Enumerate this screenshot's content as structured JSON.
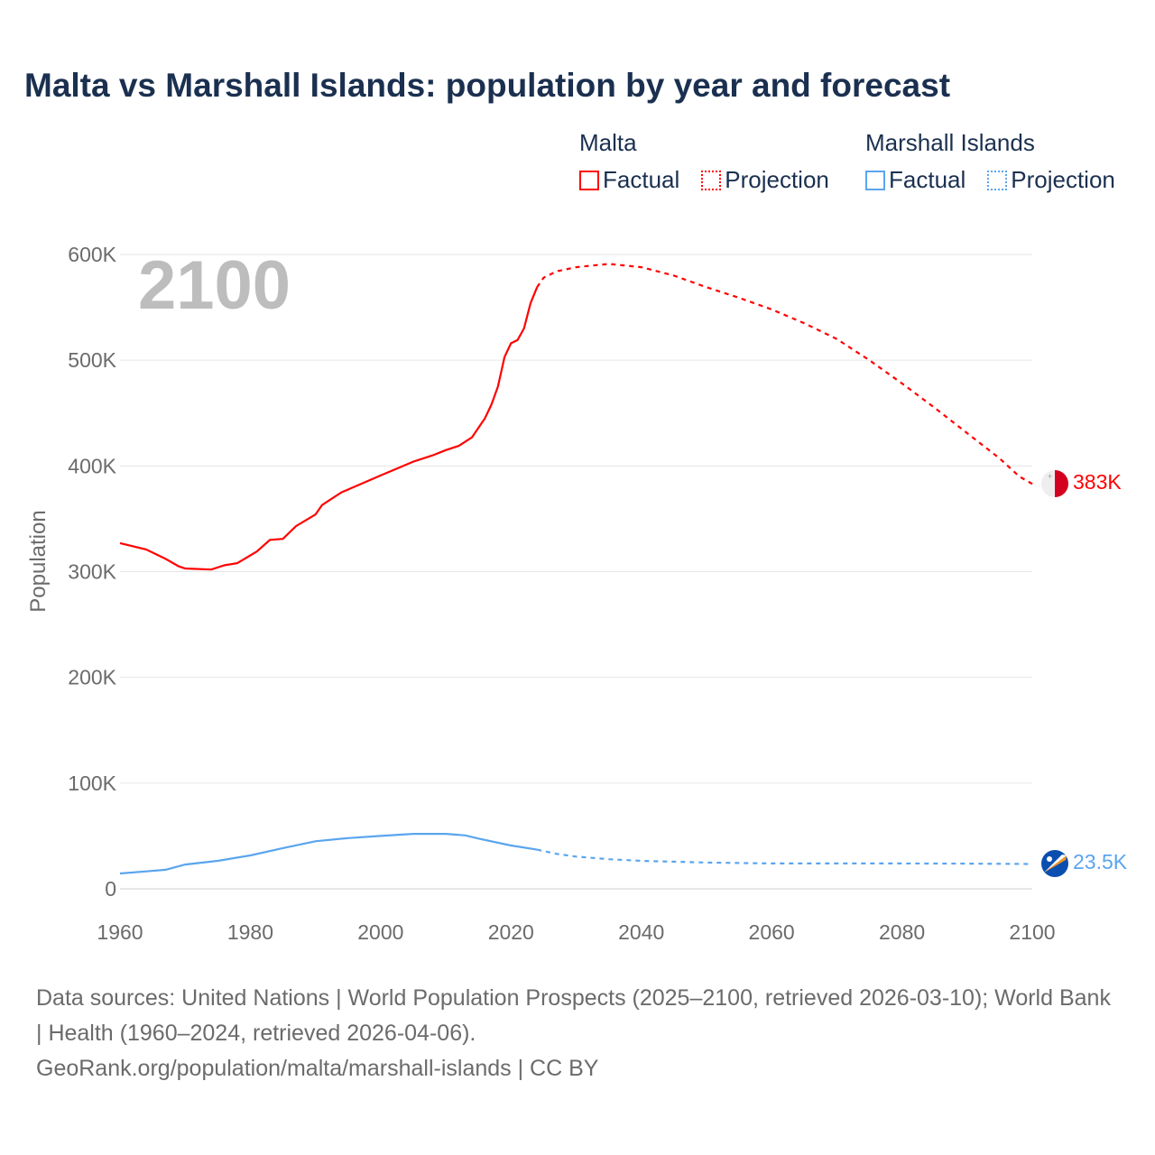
{
  "title": "Malta vs Marshall Islands: population by year and forecast",
  "legend": {
    "groups": [
      {
        "name": "Malta",
        "color": "#ff0000",
        "factual": "Factual",
        "projection": "Projection"
      },
      {
        "name": "Marshall Islands",
        "color": "#5aa5ee",
        "factual": "Factual",
        "projection": "Projection"
      }
    ]
  },
  "year_overlay": "2100",
  "footer": {
    "sources": "Data sources: United Nations | World Population Prospects (2025–2100, retrieved 2026-03-10); World Bank | Health (1960–2024, retrieved 2026-04-06).",
    "link": "GeoRank.org/population/malta/marshall-islands | CC BY"
  },
  "chart_data": {
    "type": "line",
    "title": "Malta vs Marshall Islands: population by year and forecast",
    "xlabel": "",
    "ylabel": "Population",
    "xlim": [
      1960,
      2100
    ],
    "ylim": [
      0,
      600000
    ],
    "x_ticks": [
      "1960",
      "1980",
      "2000",
      "2020",
      "2040",
      "2060",
      "2080",
      "2100"
    ],
    "y_ticks": [
      {
        "v": 0,
        "label": "0"
      },
      {
        "v": 100000,
        "label": "100K"
      },
      {
        "v": 200000,
        "label": "200K"
      },
      {
        "v": 300000,
        "label": "300K"
      },
      {
        "v": 400000,
        "label": "400K"
      },
      {
        "v": 500000,
        "label": "500K"
      },
      {
        "v": 600000,
        "label": "600K"
      }
    ],
    "grid": true,
    "series": [
      {
        "name": "Malta",
        "color": "#ff0000",
        "end_label": "383K",
        "factual": [
          [
            1960,
            327000
          ],
          [
            1964,
            321000
          ],
          [
            1967,
            312000
          ],
          [
            1969,
            305000
          ],
          [
            1970,
            303000
          ],
          [
            1974,
            302000
          ],
          [
            1976,
            306000
          ],
          [
            1978,
            308000
          ],
          [
            1981,
            319000
          ],
          [
            1983,
            330000
          ],
          [
            1985,
            331000
          ],
          [
            1987,
            343000
          ],
          [
            1990,
            354000
          ],
          [
            1991,
            363000
          ],
          [
            1994,
            375000
          ],
          [
            2000,
            391000
          ],
          [
            2005,
            404000
          ],
          [
            2008,
            410000
          ],
          [
            2010,
            415000
          ],
          [
            2012,
            419000
          ],
          [
            2014,
            427000
          ],
          [
            2016,
            445000
          ],
          [
            2017,
            458000
          ],
          [
            2018,
            475000
          ],
          [
            2019,
            503000
          ],
          [
            2020,
            516000
          ],
          [
            2021,
            519000
          ],
          [
            2022,
            530000
          ],
          [
            2023,
            554000
          ],
          [
            2024,
            569000
          ]
        ],
        "projection": [
          [
            2024,
            569000
          ],
          [
            2025,
            578000
          ],
          [
            2027,
            584000
          ],
          [
            2030,
            588000
          ],
          [
            2035,
            591000
          ],
          [
            2040,
            588000
          ],
          [
            2045,
            580000
          ],
          [
            2050,
            569000
          ],
          [
            2055,
            559000
          ],
          [
            2060,
            548000
          ],
          [
            2065,
            535000
          ],
          [
            2070,
            520000
          ],
          [
            2075,
            500000
          ],
          [
            2080,
            478000
          ],
          [
            2085,
            455000
          ],
          [
            2090,
            431000
          ],
          [
            2095,
            407000
          ],
          [
            2098,
            390000
          ],
          [
            2100,
            383000
          ]
        ]
      },
      {
        "name": "Marshall Islands",
        "color": "#5aa5ee",
        "end_label": "23.5K",
        "factual": [
          [
            1960,
            14500
          ],
          [
            1964,
            16500
          ],
          [
            1967,
            18000
          ],
          [
            1970,
            23000
          ],
          [
            1975,
            26500
          ],
          [
            1980,
            31600
          ],
          [
            1985,
            38500
          ],
          [
            1990,
            45000
          ],
          [
            1995,
            48000
          ],
          [
            2000,
            50000
          ],
          [
            2005,
            52000
          ],
          [
            2010,
            52000
          ],
          [
            2013,
            50500
          ],
          [
            2015,
            47500
          ],
          [
            2020,
            41000
          ],
          [
            2024,
            37000
          ]
        ],
        "projection": [
          [
            2024,
            37000
          ],
          [
            2027,
            33000
          ],
          [
            2030,
            30500
          ],
          [
            2035,
            28000
          ],
          [
            2040,
            26500
          ],
          [
            2050,
            24800
          ],
          [
            2060,
            24000
          ],
          [
            2070,
            24000
          ],
          [
            2080,
            24000
          ],
          [
            2090,
            23800
          ],
          [
            2100,
            23500
          ]
        ]
      }
    ]
  }
}
